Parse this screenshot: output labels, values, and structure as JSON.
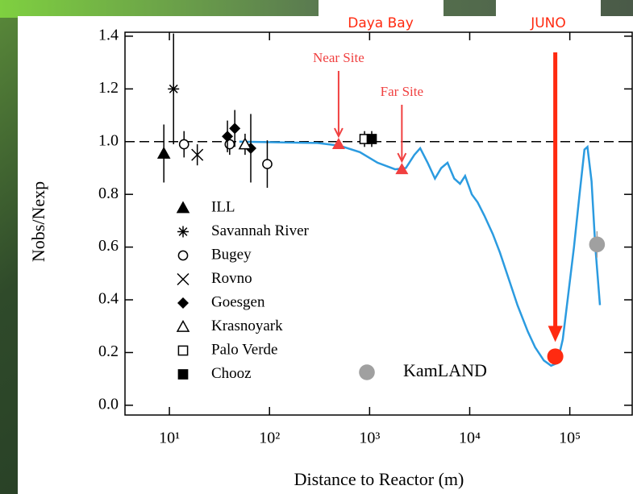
{
  "chart_data": {
    "type": "scatter",
    "x_label": "Distance to Reactor (m)",
    "y_label": "Nobs/Nexp",
    "log_x": true,
    "xlim": [
      3.6,
      420000
    ],
    "ylim": [
      -0.037,
      1.415
    ],
    "xticks": [
      {
        "value": 10,
        "label": "10¹"
      },
      {
        "value": 100,
        "label": "10²"
      },
      {
        "value": 1000,
        "label": "10³"
      },
      {
        "value": 10000,
        "label": "10⁴"
      },
      {
        "value": 100000,
        "label": "10⁵"
      }
    ],
    "yticks": [
      {
        "value": 0,
        "label": "0.0"
      },
      0.2,
      0.4,
      0.6,
      0.8,
      {
        "value": 1,
        "label": "1.0"
      },
      1.2,
      1.4
    ],
    "reference_line": 1,
    "series": [
      {
        "name": "ILL",
        "marker": "triangle",
        "color": "#000000",
        "x": [
          8.8
        ],
        "values": [
          0.955
        ],
        "errors": [
          0.11
        ]
      },
      {
        "name": "Savannah River",
        "marker": "star",
        "color": "#000000",
        "x": [
          11
        ],
        "values": [
          1.2
        ],
        "errors": [
          0.21
        ]
      },
      {
        "name": "Bugey",
        "marker": "circle-open",
        "color": "#000000",
        "x": [
          14,
          40,
          95
        ],
        "values": [
          0.99,
          0.99,
          0.915
        ],
        "errors": [
          0.05,
          0.04,
          0.09
        ]
      },
      {
        "name": "Rovno",
        "marker": "cross",
        "color": "#000000",
        "x": [
          19
        ],
        "values": [
          0.95
        ],
        "errors": [
          0.04
        ]
      },
      {
        "name": "Goesgen",
        "marker": "diamond",
        "color": "#000000",
        "x": [
          38,
          45,
          65
        ],
        "values": [
          1.02,
          1.05,
          0.975
        ],
        "errors": [
          0.06,
          0.07,
          0.13
        ]
      },
      {
        "name": "Krasnoyark",
        "marker": "triangle-open",
        "color": "#000000",
        "x": [
          57
        ],
        "values": [
          0.99
        ],
        "errors": [
          0.04
        ]
      },
      {
        "name": "Palo Verde",
        "marker": "square-open",
        "color": "#000000",
        "x": [
          890
        ],
        "values": [
          1.01
        ],
        "errors": [
          0.03
        ]
      },
      {
        "name": "Chooz",
        "marker": "square",
        "color": "#000000",
        "x": [
          1050
        ],
        "values": [
          1.01
        ],
        "errors": [
          0.03
        ]
      },
      {
        "name": "KamLAND",
        "marker": "dot",
        "color": "#a0a0a0",
        "x": [
          187000
        ],
        "values": [
          0.61
        ],
        "errors": [
          0.05
        ]
      }
    ],
    "curve": {
      "color": "#2b9be0",
      "x": [
        50,
        300,
        500,
        800,
        1200,
        1800,
        2300,
        2800,
        3200,
        3800,
        4500,
        5200,
        6000,
        7000,
        8000,
        9000,
        10500,
        12000,
        14000,
        17000,
        20000,
        25000,
        30000,
        38000,
        45000,
        55000,
        65000,
        75000,
        85000,
        95000,
        110000,
        125000,
        140000,
        150000,
        165000,
        180000,
        200000
      ],
      "y": [
        1.0,
        0.995,
        0.985,
        0.96,
        0.92,
        0.895,
        0.9,
        0.95,
        0.975,
        0.92,
        0.86,
        0.9,
        0.92,
        0.86,
        0.84,
        0.87,
        0.8,
        0.77,
        0.72,
        0.65,
        0.58,
        0.47,
        0.38,
        0.28,
        0.22,
        0.17,
        0.15,
        0.16,
        0.25,
        0.4,
        0.6,
        0.8,
        0.97,
        0.98,
        0.85,
        0.6,
        0.38
      ]
    },
    "annotations": [
      {
        "text": "Near Site",
        "x": 490,
        "y": 0.99,
        "color": "#f04040"
      },
      {
        "text": "Far Site",
        "x": 2100,
        "y": 0.895,
        "color": "#f04040"
      },
      {
        "text": "JUNO",
        "x": 71600,
        "y": 0.185,
        "color": "#ff2a10"
      }
    ],
    "site_labels": [
      "Daya Bay",
      "JUNO"
    ]
  }
}
